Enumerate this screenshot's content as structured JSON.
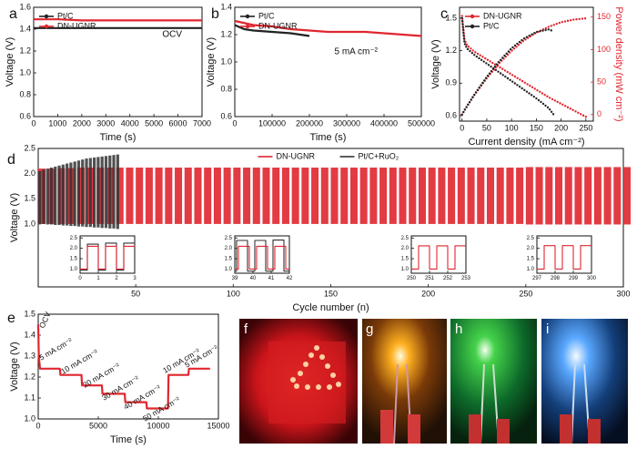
{
  "chart_data": [
    {
      "type": "line",
      "panel": "a",
      "xlabel": "Time (s)",
      "ylabel": "Voltage (V)",
      "annotation": "OCV",
      "legend": "upper left",
      "xlim": [
        0,
        7000
      ],
      "xticks": [
        0,
        1000,
        2000,
        3000,
        4000,
        5000,
        6000,
        7000
      ],
      "ylim": [
        0.6,
        1.6
      ],
      "yticks": [
        0.6,
        0.8,
        {
          "value": 1,
          "label": "1.0"
        },
        1.2,
        1.4,
        1.6
      ],
      "series": [
        {
          "name": "Pt/C",
          "color": "#222222",
          "x": [
            0,
            1000,
            2000,
            3000,
            4000,
            5000,
            6000,
            7000
          ],
          "values": [
            1.41,
            1.41,
            1.41,
            1.41,
            1.41,
            1.41,
            1.41,
            1.41
          ]
        },
        {
          "name": "DN-UGNR",
          "color": "#e0262f",
          "x": [
            0,
            1000,
            2000,
            3000,
            4000,
            5000,
            6000,
            7000
          ],
          "values": [
            1.49,
            1.49,
            1.48,
            1.48,
            1.48,
            1.48,
            1.48,
            1.48
          ]
        }
      ]
    },
    {
      "type": "line",
      "panel": "b",
      "xlabel": "Time (s)",
      "ylabel": "Voltage (V)",
      "annotation": "5 mA cm⁻²",
      "legend": "upper left",
      "xlim": [
        0,
        500000
      ],
      "xticks": [
        0,
        100000,
        200000,
        300000,
        400000,
        500000
      ],
      "ylim": [
        0.6,
        1.4
      ],
      "yticks": [
        0.6,
        0.8,
        {
          "value": 1,
          "label": "1.0"
        },
        1.2,
        1.4
      ],
      "series": [
        {
          "name": "Pt/C",
          "color": "#222222",
          "x": [
            0,
            25000,
            50000,
            100000,
            150000,
            200000
          ],
          "values": [
            1.27,
            1.24,
            1.23,
            1.22,
            1.21,
            1.19
          ]
        },
        {
          "name": "DN-UGNR",
          "color": "#e0262f",
          "x": [
            0,
            50000,
            100000,
            150000,
            200000,
            250000,
            300000,
            350000,
            400000,
            450000,
            500000
          ],
          "values": [
            1.3,
            1.27,
            1.26,
            1.24,
            1.23,
            1.22,
            1.22,
            1.22,
            1.21,
            1.2,
            1.19
          ]
        }
      ]
    },
    {
      "type": "line",
      "panel": "c",
      "xlabel": "Current density (mA cm⁻²)",
      "ylabel": "Voltage (V)",
      "y2label": "Power density (mW cm⁻²)",
      "legend": "upper left",
      "xlim": [
        -5,
        265
      ],
      "xticks": [
        0,
        50,
        100,
        150,
        200,
        250
      ],
      "ylim": [
        0.55,
        1.6
      ],
      "yticks": [
        0.6,
        0.9,
        1.2,
        1.5
      ],
      "y2lim": [
        -10,
        165
      ],
      "y2ticks": [
        0,
        50,
        100,
        150
      ],
      "series": [
        {
          "name": "DN-UGNR",
          "color": "#e0262f",
          "x": [
            0,
            5,
            10,
            25,
            50,
            75,
            100,
            125,
            150,
            175,
            200,
            225,
            250
          ],
          "values": [
            1.52,
            1.3,
            1.25,
            1.19,
            1.12,
            1.05,
            0.98,
            0.91,
            0.84,
            0.77,
            0.71,
            0.65,
            0.59
          ]
        },
        {
          "name": "Pt/C",
          "color": "#222222",
          "x": [
            0,
            5,
            10,
            25,
            50,
            75,
            100,
            125,
            150,
            175,
            185
          ],
          "values": [
            1.5,
            1.27,
            1.22,
            1.16,
            1.08,
            1.0,
            0.92,
            0.84,
            0.76,
            0.67,
            0.61
          ]
        },
        {
          "color": "#e0262f",
          "axis": "y2",
          "x": [
            0,
            5,
            10,
            25,
            50,
            75,
            100,
            125,
            150,
            175,
            200,
            225,
            250
          ],
          "values": [
            0,
            6.5,
            12.5,
            30,
            56,
            79,
            98,
            114,
            126,
            135,
            142,
            146,
            148
          ]
        },
        {
          "color": "#222222",
          "axis": "y2",
          "x": [
            0,
            5,
            10,
            25,
            50,
            75,
            100,
            125,
            150,
            175,
            185
          ],
          "values": [
            0,
            7,
            13,
            31,
            58,
            82,
            102,
            117,
            127,
            131,
            128
          ]
        }
      ]
    },
    {
      "type": "cycling",
      "panel": "d",
      "xlabel": "Cycle number (n)",
      "ylabel": "Voltage (V)",
      "legend": "upper center",
      "xlim": [
        0,
        300
      ],
      "xticks": [
        50,
        100,
        150,
        200,
        250,
        300
      ],
      "ylim": [
        -0.25,
        2.5
      ],
      "yticks": [
        {
          "value": 1,
          "label": "1.0"
        },
        1.5,
        {
          "value": 2,
          "label": "2.0"
        },
        2.5
      ],
      "series": [
        {
          "name": "DN-UGNR",
          "color": "#e0262f",
          "x": [
            0,
            5,
            10,
            15,
            20,
            25,
            30,
            35,
            40,
            45,
            50,
            55,
            60,
            65,
            70,
            75,
            80,
            85,
            90,
            95,
            100,
            105,
            110,
            115,
            120,
            125,
            130,
            135,
            140,
            145,
            150,
            155,
            160,
            165,
            170,
            175,
            180,
            185,
            190,
            195,
            200,
            205,
            210,
            215,
            220,
            225,
            230,
            235,
            240,
            245,
            250,
            255,
            260,
            265,
            270,
            275,
            280,
            285,
            290,
            295,
            300
          ],
          "charge": [
            2.1,
            2.1,
            2.11,
            2.11,
            2.12,
            2.12,
            2.12,
            2.12,
            2.12,
            2.12,
            2.12,
            2.12,
            2.12,
            2.12,
            2.12,
            2.12,
            2.12,
            2.12,
            2.12,
            2.12,
            2.12,
            2.12,
            2.12,
            2.12,
            2.12,
            2.12,
            2.12,
            2.12,
            2.12,
            2.12,
            2.12,
            2.12,
            2.12,
            2.12,
            2.12,
            2.12,
            2.12,
            2.12,
            2.12,
            2.12,
            2.12,
            2.12,
            2.12,
            2.12,
            2.12,
            2.12,
            2.12,
            2.12,
            2.12,
            2.12,
            2.13,
            2.13,
            2.13,
            2.13,
            2.13,
            2.13,
            2.13,
            2.13,
            2.13,
            2.13,
            2.13
          ],
          "discharge": [
            1.0,
            1.0,
            1.0,
            1.0,
            1.0,
            1.0,
            1.0,
            1.0,
            1.0,
            1.0,
            1.0,
            1.0,
            1.0,
            1.0,
            1.0,
            1.0,
            1.0,
            1.0,
            1.0,
            1.0,
            1.0,
            1.0,
            1.0,
            1.0,
            1.0,
            1.0,
            1.0,
            1.0,
            1.0,
            1.0,
            1.0,
            1.0,
            1.0,
            1.0,
            1.0,
            1.0,
            1.0,
            1.0,
            1.0,
            1.0,
            1.0,
            1.0,
            1.0,
            1.0,
            1.0,
            1.0,
            1.0,
            1.0,
            1.0,
            1.0,
            0.99,
            0.99,
            0.99,
            0.99,
            0.99,
            0.99,
            0.99,
            0.99,
            0.99,
            0.99,
            0.99
          ]
        },
        {
          "name": "Pt/C+RuO₂",
          "color": "#333333",
          "x": [
            0,
            2,
            4,
            6,
            8,
            10,
            12,
            14,
            16,
            18,
            20,
            22,
            24,
            26,
            28,
            30,
            32,
            34,
            36,
            38,
            40
          ],
          "charge": [
            2.05,
            2.08,
            2.1,
            2.12,
            2.14,
            2.16,
            2.18,
            2.2,
            2.22,
            2.24,
            2.26,
            2.28,
            2.3,
            2.31,
            2.32,
            2.33,
            2.34,
            2.35,
            2.36,
            2.37,
            2.38
          ],
          "discharge": [
            1.0,
            1.0,
            0.99,
            0.99,
            0.98,
            0.98,
            0.97,
            0.97,
            0.96,
            0.96,
            0.95,
            0.95,
            0.94,
            0.94,
            0.93,
            0.93,
            0.92,
            0.92,
            0.91,
            0.91,
            0.9
          ]
        }
      ],
      "insets": [
        {
          "xlim": [
            0,
            3
          ],
          "xticks": [
            0,
            1,
            2,
            3
          ],
          "ylim": [
            0.8,
            2.6
          ],
          "yticks": [
            {
              "value": 1,
              "label": "1.0"
            },
            1.5,
            {
              "value": 2,
              "label": "2.0"
            },
            2.5
          ],
          "series": [
            {
              "color": "#333333",
              "x": [
                0,
                0.4,
                0.4,
                1,
                1,
                1.4,
                1.4,
                2,
                2,
                2.4,
                2.4,
                3
              ],
              "values": [
                0.95,
                0.95,
                2.2,
                2.2,
                0.95,
                0.95,
                2.25,
                2.25,
                0.95,
                0.95,
                2.25,
                2.25
              ]
            },
            {
              "color": "#e0262f",
              "x": [
                0,
                0.4,
                0.4,
                1,
                1,
                1.4,
                1.4,
                2,
                2,
                2.4,
                2.4,
                3
              ],
              "values": [
                1.0,
                1.0,
                2.1,
                2.1,
                1.0,
                1.0,
                2.1,
                2.1,
                1.0,
                1.0,
                2.1,
                2.1
              ]
            }
          ]
        },
        {
          "xlim": [
            39,
            42
          ],
          "xticks": [
            39,
            40,
            41,
            42
          ],
          "ylim": [
            0.8,
            2.6
          ],
          "yticks": [
            {
              "value": 1,
              "label": "1.0"
            },
            1.5,
            {
              "value": 2,
              "label": "2.0"
            },
            2.5
          ],
          "series": [
            {
              "color": "#333333",
              "x": [
                39,
                39.1,
                39.1,
                39.7,
                39.7,
                40.1,
                40.1,
                40.7,
                40.7,
                41.1,
                41.1,
                41.7,
                41.7,
                42
              ],
              "values": [
                0.9,
                0.9,
                2.38,
                2.38,
                0.9,
                0.9,
                2.38,
                2.38,
                0.9,
                0.9,
                2.4,
                2.4,
                0.9,
                0.9
              ]
            },
            {
              "color": "#e0262f",
              "x": [
                39,
                39.2,
                39.2,
                39.8,
                39.8,
                40.2,
                40.2,
                40.8,
                40.8,
                41.2,
                41.2,
                41.8,
                41.8,
                42
              ],
              "values": [
                1.0,
                1.0,
                2.1,
                2.1,
                1.0,
                1.0,
                2.1,
                2.1,
                1.0,
                1.0,
                2.1,
                2.1,
                1.0,
                1.0
              ]
            }
          ]
        },
        {
          "xlim": [
            250,
            253
          ],
          "xticks": [
            250,
            251,
            252,
            253
          ],
          "ylim": [
            0.8,
            2.6
          ],
          "yticks": [
            {
              "value": 1,
              "label": "1.0"
            },
            1.5,
            {
              "value": 2,
              "label": "2.0"
            },
            2.5
          ],
          "series": [
            {
              "color": "#e0262f",
              "x": [
                250,
                250.4,
                250.4,
                251,
                251,
                251.4,
                251.4,
                252,
                252,
                252.4,
                252.4,
                253
              ],
              "values": [
                1.0,
                1.0,
                2.12,
                2.12,
                1.0,
                1.0,
                2.12,
                2.12,
                1.0,
                1.0,
                2.12,
                2.12
              ]
            }
          ]
        },
        {
          "xlim": [
            297,
            300
          ],
          "xticks": [
            297,
            298,
            299,
            300
          ],
          "ylim": [
            0.8,
            2.6
          ],
          "yticks": [
            {
              "value": 1,
              "label": "1.0"
            },
            1.5,
            {
              "value": 2,
              "label": "2.0"
            },
            2.5
          ],
          "series": [
            {
              "color": "#e0262f",
              "x": [
                297,
                297.4,
                297.4,
                298,
                298,
                298.4,
                298.4,
                299,
                299,
                299.4,
                299.4,
                300
              ],
              "values": [
                1.0,
                1.0,
                2.13,
                2.13,
                1.0,
                1.0,
                2.13,
                2.13,
                1.0,
                1.0,
                2.13,
                2.13
              ]
            }
          ]
        }
      ]
    },
    {
      "type": "line",
      "panel": "e",
      "xlabel": "Time (s)",
      "ylabel": "Voltage (V)",
      "xlim": [
        0,
        15000
      ],
      "xticks": [
        0,
        5000,
        10000,
        15000
      ],
      "ylim": [
        1.0,
        1.5
      ],
      "yticks": [
        {
          "value": 1,
          "label": "1.0"
        },
        1.1,
        1.2,
        1.3,
        1.4,
        1.5
      ],
      "series": [
        {
          "color": "#e0262f",
          "x": [
            0,
            50,
            150,
            1800,
            1850,
            3600,
            3650,
            5300,
            5350,
            7200,
            7250,
            9000,
            9050,
            10800,
            10850,
            12500,
            12550,
            14300
          ],
          "values": [
            1.45,
            1.3,
            1.24,
            1.24,
            1.21,
            1.21,
            1.16,
            1.16,
            1.12,
            1.12,
            1.08,
            1.08,
            1.05,
            1.05,
            1.21,
            1.21,
            1.24,
            1.24
          ]
        }
      ],
      "annotations": [
        "OCV",
        "5 mA cm⁻²",
        "10 mA cm⁻²",
        "20 mA cm⁻²",
        "30 mA cm⁻²",
        "40 mA cm⁻²",
        "50 mA cm⁻²",
        "10 mA cm⁻²",
        "5 mA cm⁻²"
      ]
    }
  ],
  "photos": [
    "f",
    "g",
    "h",
    "i"
  ]
}
